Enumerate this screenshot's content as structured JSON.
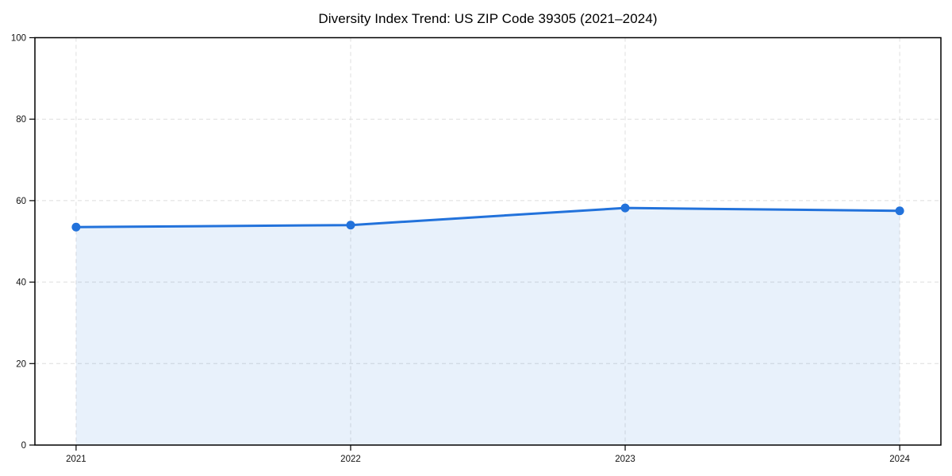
{
  "chart_data": {
    "type": "area",
    "title": "Diversity Index Trend: US ZIP Code 39305 (2021–2024)",
    "x": [
      "2021",
      "2022",
      "2023",
      "2024"
    ],
    "series": [
      {
        "name": "Diversity Index",
        "values": [
          53.5,
          54.0,
          58.2,
          57.5
        ]
      }
    ],
    "xlabel": "",
    "ylabel": "",
    "ylim": [
      0,
      100
    ],
    "yticks": [
      0,
      20,
      40,
      60,
      80,
      100
    ],
    "grid": true,
    "grid_style": "dashed",
    "legend_position": "none",
    "marker": "circle",
    "colors": {
      "line": "#2272db",
      "marker": "#2272db",
      "fill": "#2272db",
      "fill_opacity": 0.1,
      "grid": "#dedede",
      "axis": "#000000",
      "tick_label": "#111111",
      "background": "#ffffff"
    }
  }
}
